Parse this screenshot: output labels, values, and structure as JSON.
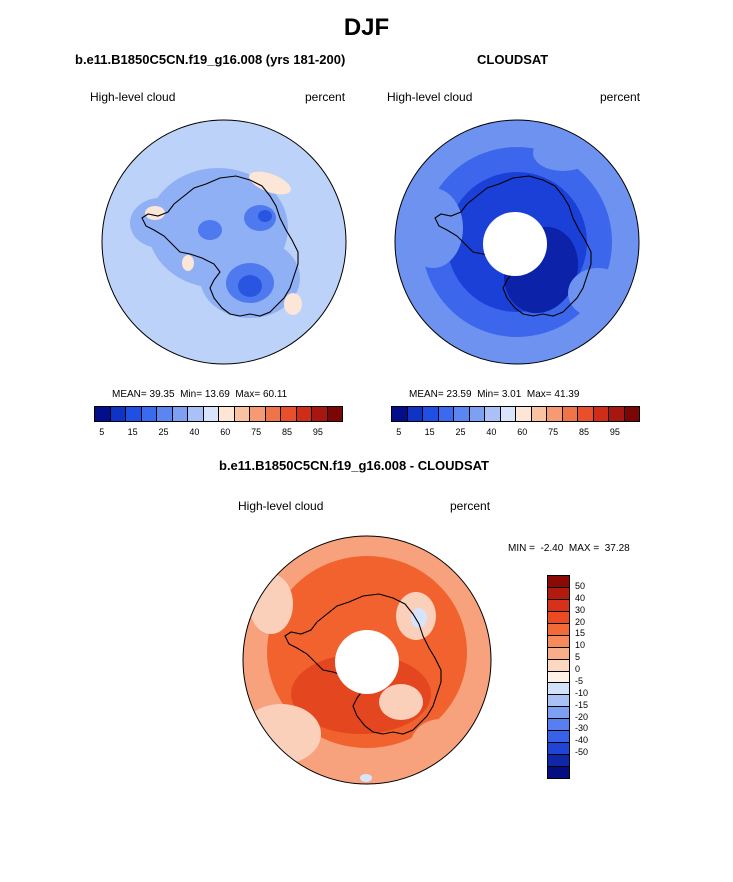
{
  "title": "DJF",
  "chart_data": [
    {
      "type": "heatmap",
      "title": "b.e11.B1850C5CN.f19_g16.008 (yrs 181-200)",
      "left_label": "High-level cloud",
      "right_label": "percent",
      "stats": {
        "mean": "39.35",
        "min": "13.69",
        "max": "60.11"
      },
      "colorbar": {
        "tick_labels": [
          "5",
          "15",
          "25",
          "40",
          "60",
          "75",
          "85",
          "95"
        ],
        "colors": [
          "#050e8a",
          "#0f33c4",
          "#1f4fe5",
          "#3a6af0",
          "#5b86f2",
          "#7ea0f3",
          "#a9c1f6",
          "#d7e4fb",
          "#fde6d6",
          "#f9c3a3",
          "#f59a72",
          "#f0744a",
          "#e84f2a",
          "#cf2d18",
          "#a81610",
          "#7b0606"
        ]
      }
    },
    {
      "type": "heatmap",
      "title": "CLOUDSAT",
      "left_label": "High-level cloud",
      "right_label": "percent",
      "stats": {
        "mean": "23.59",
        "min": "3.01",
        "max": "41.39"
      },
      "colorbar": {
        "tick_labels": [
          "5",
          "15",
          "25",
          "40",
          "60",
          "75",
          "85",
          "95"
        ],
        "colors": [
          "#050e8a",
          "#0f33c4",
          "#1f4fe5",
          "#3a6af0",
          "#5b86f2",
          "#7ea0f3",
          "#a9c1f6",
          "#d7e4fb",
          "#fde6d6",
          "#f9c3a3",
          "#f59a72",
          "#f0744a",
          "#e84f2a",
          "#cf2d18",
          "#a81610",
          "#7b0606"
        ]
      }
    },
    {
      "type": "heatmap",
      "title": "b.e11.B1850C5CN.f19_g16.008 - CLOUDSAT",
      "left_label": "High-level cloud",
      "right_label": "percent",
      "stats": {
        "min": "-2.40",
        "max": "37.28"
      },
      "colorbar": {
        "tick_labels": [
          "50",
          "40",
          "30",
          "20",
          "15",
          "10",
          "5",
          "0",
          "-5",
          "-10",
          "-15",
          "-20",
          "-30",
          "-40",
          "-50"
        ],
        "colors": [
          "#8a0a05",
          "#b31a0e",
          "#d8311a",
          "#ec4a22",
          "#f46a36",
          "#f78a5b",
          "#f9ad88",
          "#fcd8c2",
          "#fdf1e8",
          "#d3e2fb",
          "#a8c2f6",
          "#7da0f2",
          "#587ff0",
          "#3661e8",
          "#1f45d6",
          "#1028a8",
          "#050e80"
        ]
      }
    }
  ],
  "colors": {
    "model_base": "#bdd2f8",
    "model_mid": "#8fb0f4",
    "model_dark": "#4f79ee",
    "model_darker": "#2a55e0",
    "model_warm": "#fce6d8",
    "obs_base": "#3c67ec",
    "obs_light": "#6e92f0",
    "obs_dark": "#1a40d8",
    "obs_darker": "#0c22a8",
    "diff_base": "#f1622f",
    "diff_light": "#f7a27c",
    "diff_lighter": "#fbd0bb",
    "diff_dark": "#e4461f",
    "diff_cold": "#d8e4fb"
  }
}
